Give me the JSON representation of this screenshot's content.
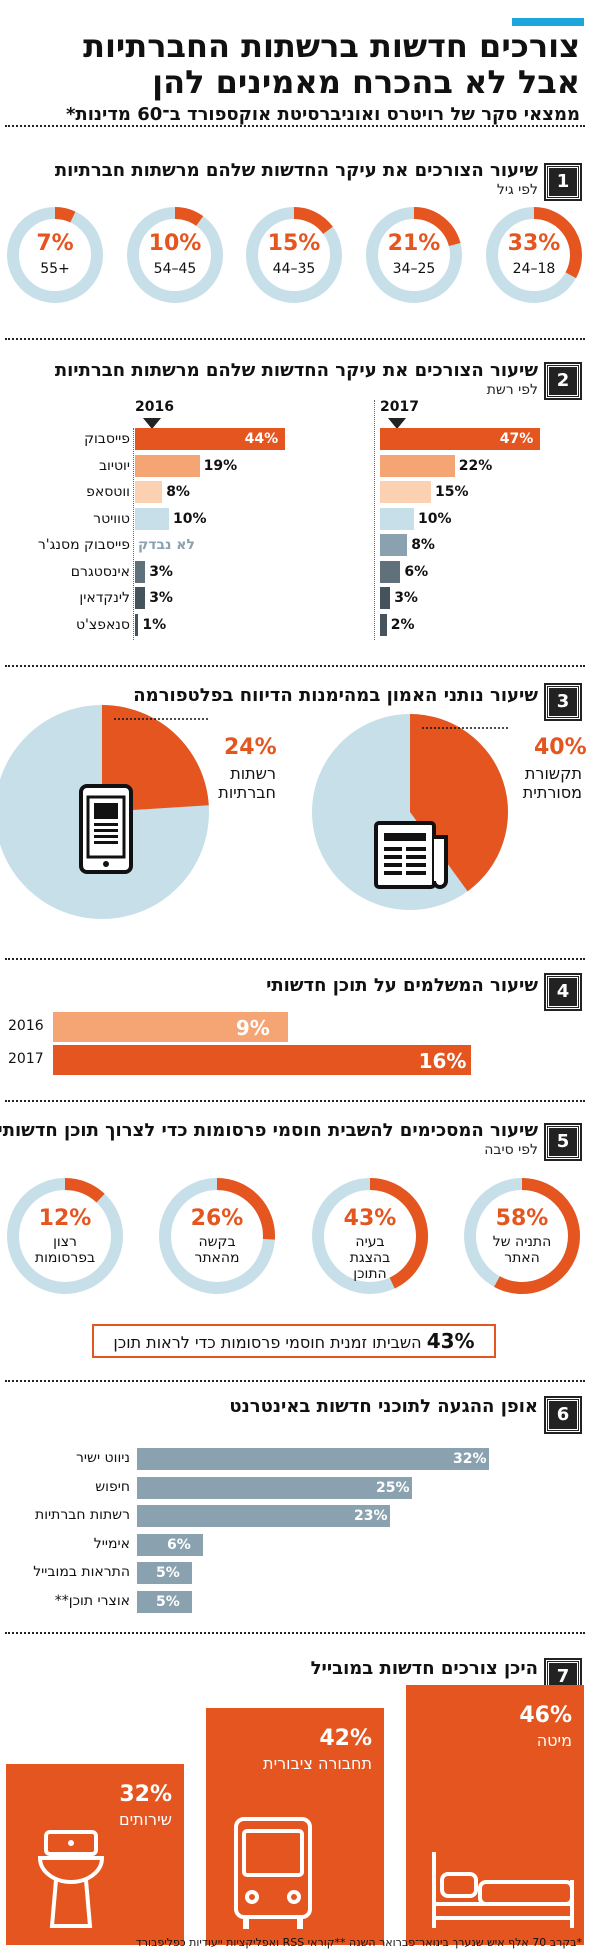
{
  "header": {
    "title_line1": "צורכים חדשות ברשתות החברתיות",
    "title_line2": "אבל לא בהכרח מאמינים להן",
    "subtitle": "ממצאי סקר של רויטרס ואוניברסיטת אוקספורד ב־60 מדינות*"
  },
  "colors": {
    "orange": "#e5551f",
    "light_blue": "#c7dfe9",
    "peach": "#f5a473",
    "light_peach": "#fbd1b2",
    "gray_blue": "#8aa2b0",
    "slate": "#60717c",
    "dark_slate": "#44535c"
  },
  "footnote": "*בקרב 70 אלף איש שנערך בינואר־פברואר השנה **קוראי RSS ואפליקציות ייעודיות כפליפבורד",
  "chart_data": [
    {
      "type": "pie",
      "id": "1",
      "title": "שיעור הצורכים את עיקר החדשות שלהם מרשתות חברתיות",
      "subtitle": "לפי גיל",
      "categories": [
        "24–18",
        "34–25",
        "44–35",
        "54–45",
        "55+"
      ],
      "values": [
        33,
        21,
        15,
        10,
        7
      ],
      "labels": [
        "33%",
        "21%",
        "15%",
        "10%",
        "7%"
      ]
    },
    {
      "type": "bar",
      "id": "2",
      "title": "שיעור הצורכים את עיקר החדשות שלהם מרשתות חברתיות",
      "subtitle": "לפי רשת",
      "categories": [
        "פייסבוק",
        "יוטיוב",
        "ווטסאפ",
        "טוויטר",
        "פייסבוק מסנג'ר",
        "אינסטגרם",
        "לינקדאין",
        "סנאפצ'ט"
      ],
      "series": [
        {
          "name": "2017",
          "values": [
            47,
            22,
            15,
            10,
            8,
            6,
            3,
            2
          ],
          "labels": [
            "47%",
            "22%",
            "15%",
            "10%",
            "8%",
            "6%",
            "3%",
            "2%"
          ]
        },
        {
          "name": "2016",
          "values": [
            44,
            19,
            8,
            10,
            null,
            3,
            3,
            1
          ],
          "labels": [
            "44%",
            "19%",
            "8%",
            "10%",
            "לא נבדק",
            "3%",
            "3%",
            "1%"
          ]
        }
      ]
    },
    {
      "type": "pie",
      "id": "3",
      "title": "שיעור נותני האמון במהימנות הדיווח בפלטפורמה",
      "categories": [
        "תקשורת מסורתית",
        "רשתות חברתיות"
      ],
      "values": [
        40,
        24
      ],
      "labels": [
        "40%",
        "24%"
      ]
    },
    {
      "type": "bar",
      "id": "4",
      "title": "שיעור המשלמים על תוכן חדשותי",
      "categories": [
        "2016",
        "2017"
      ],
      "values": [
        9,
        16
      ],
      "labels": [
        "9%",
        "16%"
      ]
    },
    {
      "type": "pie",
      "id": "5",
      "title": "שיעור המסכימים להשבית חוסמי פרסומות כדי לצרוך תוכן חדשותי",
      "subtitle": "לפי סיבה",
      "categories": [
        "התניה של האתר",
        "בעיה בהצגת התוכן",
        "בקשה מהאתר",
        "רצון בפרסומות"
      ],
      "values": [
        58,
        43,
        26,
        12
      ],
      "labels": [
        "58%",
        "43%",
        "26%",
        "12%"
      ],
      "note_value": "43%",
      "note_text": "השביתו זמנית חוסמי פרסומות כדי לראות תוכן"
    },
    {
      "type": "bar",
      "id": "6",
      "title": "אופן ההגעה לתוכני חדשות באינטרנט",
      "categories": [
        "ניווט ישיר",
        "חיפוש",
        "רשתות חברתיות",
        "אימייל",
        "התראות במובייל",
        "אוצרי תוכן**"
      ],
      "values": [
        32,
        25,
        23,
        6,
        5,
        5
      ],
      "labels": [
        "32%",
        "25%",
        "23%",
        "6%",
        "5%",
        "5%"
      ]
    },
    {
      "type": "bar",
      "id": "7",
      "title": "היכן צורכים חדשות במובייל",
      "categories": [
        "מיטה",
        "תחבורה ציבורית",
        "שירותים"
      ],
      "values": [
        46,
        42,
        32
      ],
      "labels": [
        "46%",
        "42%",
        "32%"
      ]
    }
  ]
}
